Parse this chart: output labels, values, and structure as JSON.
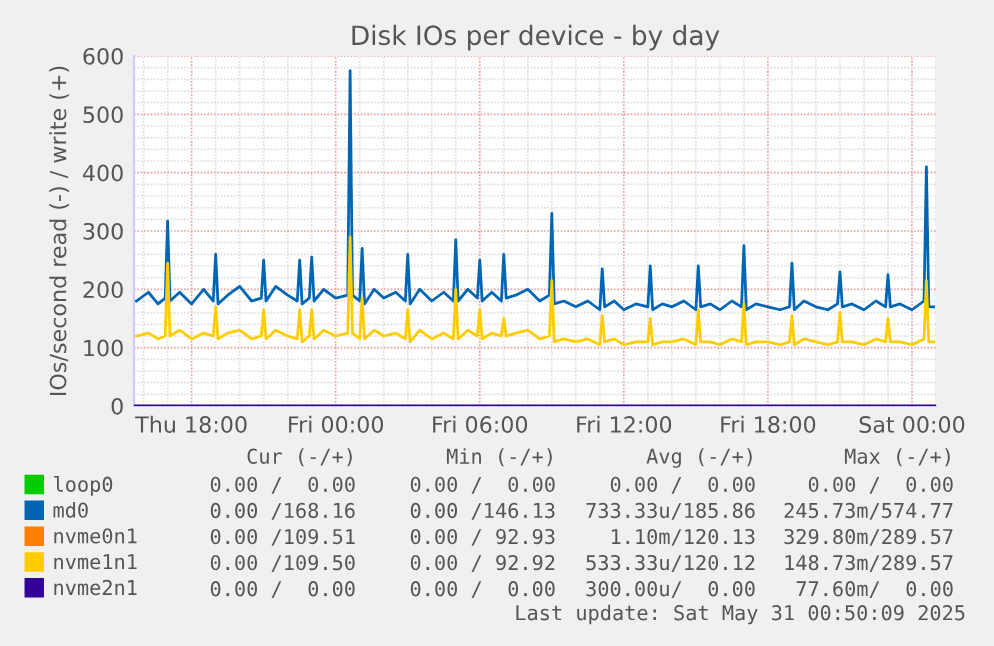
{
  "chart_data": {
    "type": "line",
    "title": "Disk IOs per device - by day",
    "ylabel": "IOs/second read (-) / write (+)",
    "xlim": [
      "2025-05-29T15:36",
      "2025-05-31T01:00"
    ],
    "xticks": [
      {
        "value": "2025-05-29T18:00",
        "label": "Thu 18:00"
      },
      {
        "value": "2025-05-30T00:00",
        "label": "Fri 00:00"
      },
      {
        "value": "2025-05-30T06:00",
        "label": "Fri 06:00"
      },
      {
        "value": "2025-05-30T12:00",
        "label": "Fri 12:00"
      },
      {
        "value": "2025-05-30T18:00",
        "label": "Fri 18:00"
      },
      {
        "value": "2025-05-31T00:00",
        "label": "Sat 00:00"
      }
    ],
    "ylim": [
      0,
      600
    ],
    "yticks": [
      0,
      100,
      200,
      300,
      400,
      500,
      600
    ],
    "grid": true,
    "legend": "bottom",
    "line_style": "solid",
    "marker": "none",
    "series": [
      {
        "name": "loop0",
        "color": "#00cc00"
      },
      {
        "name": "md0",
        "color": "#0066b3",
        "x": [
          "2025-05-29T15:42",
          "2025-05-29T16:12",
          "2025-05-29T16:36",
          "2025-05-29T16:54",
          "2025-05-29T17:00",
          "2025-05-29T17:06",
          "2025-05-29T17:30",
          "2025-05-29T18:00",
          "2025-05-29T18:30",
          "2025-05-29T18:54",
          "2025-05-29T19:00",
          "2025-05-29T19:06",
          "2025-05-29T19:30",
          "2025-05-29T20:00",
          "2025-05-29T20:30",
          "2025-05-29T20:54",
          "2025-05-29T21:00",
          "2025-05-29T21:06",
          "2025-05-29T21:30",
          "2025-05-29T22:00",
          "2025-05-29T22:24",
          "2025-05-29T22:30",
          "2025-05-29T22:36",
          "2025-05-29T22:54",
          "2025-05-29T23:00",
          "2025-05-29T23:06",
          "2025-05-29T23:30",
          "2025-05-30T00:00",
          "2025-05-30T00:30",
          "2025-05-30T00:36",
          "2025-05-30T00:42",
          "2025-05-30T01:00",
          "2025-05-30T01:06",
          "2025-05-30T01:12",
          "2025-05-30T01:36",
          "2025-05-30T02:00",
          "2025-05-30T02:30",
          "2025-05-30T02:54",
          "2025-05-30T03:00",
          "2025-05-30T03:06",
          "2025-05-30T03:30",
          "2025-05-30T04:00",
          "2025-05-30T04:30",
          "2025-05-30T04:54",
          "2025-05-30T05:00",
          "2025-05-30T05:06",
          "2025-05-30T05:30",
          "2025-05-30T05:54",
          "2025-05-30T06:00",
          "2025-05-30T06:06",
          "2025-05-30T06:30",
          "2025-05-30T06:54",
          "2025-05-30T07:00",
          "2025-05-30T07:06",
          "2025-05-30T07:30",
          "2025-05-30T08:00",
          "2025-05-30T08:30",
          "2025-05-30T08:54",
          "2025-05-30T09:00",
          "2025-05-30T09:06",
          "2025-05-30T09:30",
          "2025-05-30T10:00",
          "2025-05-30T10:30",
          "2025-05-30T11:00",
          "2025-05-30T11:06",
          "2025-05-30T11:12",
          "2025-05-30T11:36",
          "2025-05-30T12:00",
          "2025-05-30T12:30",
          "2025-05-30T13:00",
          "2025-05-30T13:06",
          "2025-05-30T13:12",
          "2025-05-30T13:36",
          "2025-05-30T14:00",
          "2025-05-30T14:30",
          "2025-05-30T15:00",
          "2025-05-30T15:06",
          "2025-05-30T15:12",
          "2025-05-30T15:36",
          "2025-05-30T16:00",
          "2025-05-30T16:30",
          "2025-05-30T16:54",
          "2025-05-30T17:00",
          "2025-05-30T17:06",
          "2025-05-30T17:30",
          "2025-05-30T18:00",
          "2025-05-30T18:30",
          "2025-05-30T18:54",
          "2025-05-30T19:00",
          "2025-05-30T19:06",
          "2025-05-30T19:30",
          "2025-05-30T20:00",
          "2025-05-30T20:30",
          "2025-05-30T20:54",
          "2025-05-30T21:00",
          "2025-05-30T21:06",
          "2025-05-30T21:30",
          "2025-05-30T22:00",
          "2025-05-30T22:30",
          "2025-05-30T22:54",
          "2025-05-30T23:00",
          "2025-05-30T23:06",
          "2025-05-30T23:30",
          "2025-05-31T00:00",
          "2025-05-31T00:30",
          "2025-05-31T00:36",
          "2025-05-31T00:42",
          "2025-05-31T00:54"
        ],
        "values": [
          180,
          195,
          175,
          185,
          317,
          180,
          195,
          175,
          200,
          180,
          260,
          175,
          190,
          205,
          180,
          185,
          250,
          180,
          205,
          190,
          180,
          250,
          175,
          185,
          255,
          180,
          200,
          185,
          190,
          575,
          190,
          180,
          270,
          175,
          200,
          185,
          195,
          180,
          260,
          175,
          200,
          180,
          195,
          180,
          285,
          180,
          200,
          185,
          250,
          180,
          195,
          180,
          260,
          185,
          190,
          200,
          180,
          190,
          330,
          175,
          180,
          170,
          180,
          165,
          235,
          170,
          180,
          165,
          175,
          170,
          240,
          165,
          175,
          170,
          180,
          165,
          240,
          170,
          175,
          165,
          180,
          170,
          275,
          165,
          175,
          170,
          165,
          170,
          245,
          165,
          180,
          170,
          165,
          175,
          230,
          170,
          175,
          165,
          180,
          170,
          225,
          170,
          175,
          165,
          180,
          410,
          170,
          170
        ]
      },
      {
        "name": "nvme0n1",
        "color": "#ff8000"
      },
      {
        "name": "nvme1n1",
        "color": "#ffcc00",
        "x": [
          "2025-05-29T15:42",
          "2025-05-29T16:12",
          "2025-05-29T16:36",
          "2025-05-29T16:54",
          "2025-05-29T17:00",
          "2025-05-29T17:06",
          "2025-05-29T17:30",
          "2025-05-29T18:00",
          "2025-05-29T18:30",
          "2025-05-29T18:54",
          "2025-05-29T19:00",
          "2025-05-29T19:06",
          "2025-05-29T19:30",
          "2025-05-29T20:00",
          "2025-05-29T20:30",
          "2025-05-29T20:54",
          "2025-05-29T21:00",
          "2025-05-29T21:06",
          "2025-05-29T21:30",
          "2025-05-29T22:00",
          "2025-05-29T22:24",
          "2025-05-29T22:30",
          "2025-05-29T22:36",
          "2025-05-29T22:54",
          "2025-05-29T23:00",
          "2025-05-29T23:06",
          "2025-05-29T23:30",
          "2025-05-30T00:00",
          "2025-05-30T00:30",
          "2025-05-30T00:36",
          "2025-05-30T00:42",
          "2025-05-30T01:00",
          "2025-05-30T01:06",
          "2025-05-30T01:12",
          "2025-05-30T01:36",
          "2025-05-30T02:00",
          "2025-05-30T02:30",
          "2025-05-30T02:54",
          "2025-05-30T03:00",
          "2025-05-30T03:06",
          "2025-05-30T03:30",
          "2025-05-30T04:00",
          "2025-05-30T04:30",
          "2025-05-30T04:54",
          "2025-05-30T05:00",
          "2025-05-30T05:06",
          "2025-05-30T05:30",
          "2025-05-30T05:54",
          "2025-05-30T06:00",
          "2025-05-30T06:06",
          "2025-05-30T06:30",
          "2025-05-30T06:54",
          "2025-05-30T07:00",
          "2025-05-30T07:06",
          "2025-05-30T07:30",
          "2025-05-30T08:00",
          "2025-05-30T08:30",
          "2025-05-30T08:54",
          "2025-05-30T09:00",
          "2025-05-30T09:06",
          "2025-05-30T09:30",
          "2025-05-30T10:00",
          "2025-05-30T10:30",
          "2025-05-30T11:00",
          "2025-05-30T11:06",
          "2025-05-30T11:12",
          "2025-05-30T11:36",
          "2025-05-30T12:00",
          "2025-05-30T12:30",
          "2025-05-30T13:00",
          "2025-05-30T13:06",
          "2025-05-30T13:12",
          "2025-05-30T13:36",
          "2025-05-30T14:00",
          "2025-05-30T14:30",
          "2025-05-30T15:00",
          "2025-05-30T15:06",
          "2025-05-30T15:12",
          "2025-05-30T15:36",
          "2025-05-30T16:00",
          "2025-05-30T16:30",
          "2025-05-30T16:54",
          "2025-05-30T17:00",
          "2025-05-30T17:06",
          "2025-05-30T17:30",
          "2025-05-30T18:00",
          "2025-05-30T18:30",
          "2025-05-30T18:54",
          "2025-05-30T19:00",
          "2025-05-30T19:06",
          "2025-05-30T19:30",
          "2025-05-30T20:00",
          "2025-05-30T20:30",
          "2025-05-30T20:54",
          "2025-05-30T21:00",
          "2025-05-30T21:06",
          "2025-05-30T21:30",
          "2025-05-30T22:00",
          "2025-05-30T22:30",
          "2025-05-30T22:54",
          "2025-05-30T23:00",
          "2025-05-30T23:06",
          "2025-05-30T23:30",
          "2025-05-31T00:00",
          "2025-05-31T00:30",
          "2025-05-31T00:36",
          "2025-05-31T00:42",
          "2025-05-31T00:54"
        ],
        "values": [
          120,
          125,
          115,
          120,
          245,
          120,
          130,
          115,
          125,
          120,
          170,
          115,
          125,
          130,
          115,
          120,
          165,
          115,
          130,
          120,
          115,
          165,
          110,
          120,
          165,
          115,
          130,
          120,
          125,
          290,
          125,
          115,
          185,
          115,
          130,
          120,
          125,
          115,
          165,
          110,
          130,
          115,
          125,
          115,
          200,
          115,
          130,
          120,
          165,
          115,
          125,
          120,
          150,
          120,
          125,
          130,
          115,
          120,
          215,
          110,
          115,
          110,
          115,
          105,
          155,
          110,
          115,
          105,
          110,
          110,
          150,
          105,
          110,
          110,
          115,
          105,
          165,
          110,
          110,
          105,
          115,
          110,
          175,
          105,
          110,
          110,
          105,
          110,
          155,
          105,
          115,
          110,
          105,
          110,
          160,
          110,
          110,
          105,
          115,
          110,
          150,
          110,
          110,
          105,
          115,
          215,
          110,
          110
        ]
      },
      {
        "name": "nvme2n1",
        "color": "#330099",
        "x": [
          "2025-05-29T15:36",
          "2025-05-31T01:00"
        ],
        "values": [
          0,
          0
        ]
      }
    ],
    "annotations": [
      "Cur (-/+)",
      "Min (-/+)",
      "Avg (-/+)",
      "Max (-/+)",
      "0.00 /  0.00",
      "0.00 /  0.00",
      "0.00 /  0.00",
      "0.00 /  0.00",
      "0.00 /168.16",
      "0.00 /146.13",
      "733.33u/185.86",
      "245.73m/574.77",
      "0.00 /109.51",
      "0.00 / 92.93",
      "1.10m/120.13",
      "329.80m/289.57",
      "0.00 /109.50",
      "0.00 / 92.92",
      "533.33u/120.12",
      "148.73m/289.57",
      "0.00 /  0.00",
      "0.00 /  0.00",
      "300.00u/  0.00",
      "77.60m/  0.00",
      "Last update: Sat May 31 00:50:09 2025"
    ]
  }
}
